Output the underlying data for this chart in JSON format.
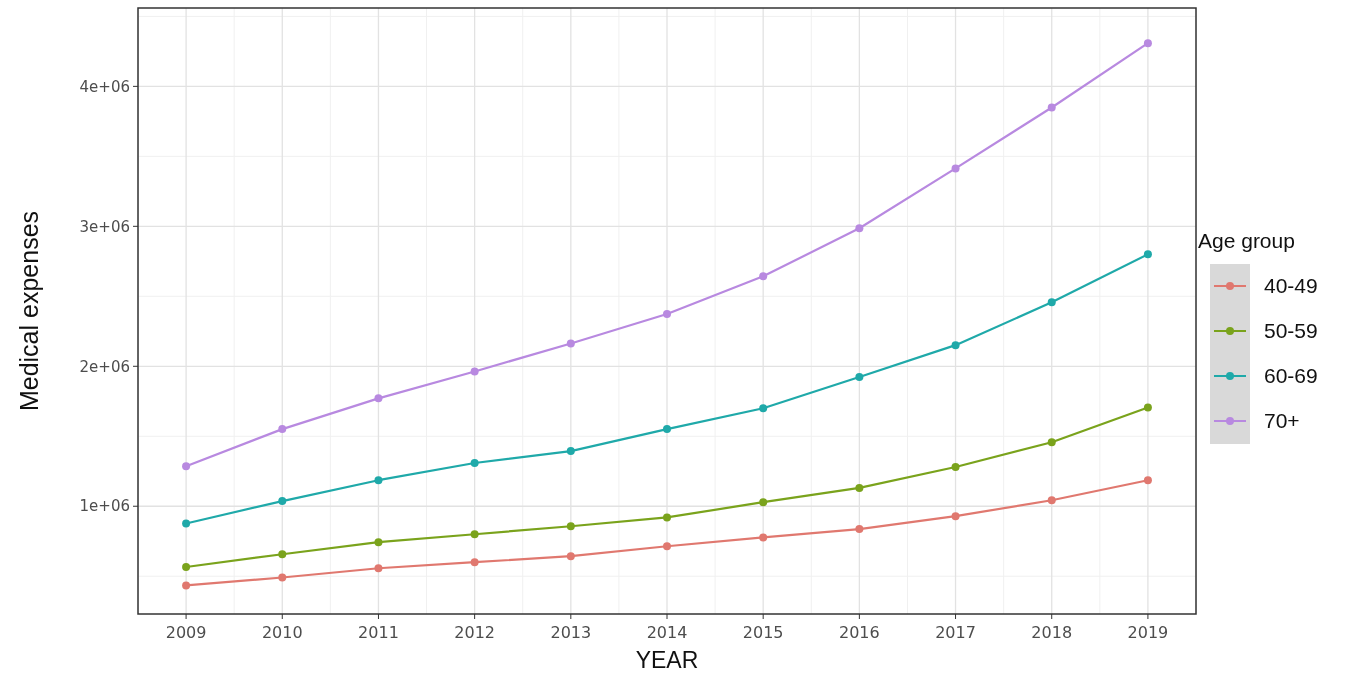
{
  "chart_data": {
    "type": "line",
    "xlabel": "YEAR",
    "ylabel": "Medical expenses",
    "legend_title": "Age group",
    "legend": "right",
    "grid": true,
    "marker": "circle",
    "line_style": "solid",
    "x": [
      2009,
      2010,
      2011,
      2012,
      2013,
      2014,
      2015,
      2016,
      2017,
      2018,
      2019
    ],
    "xlim": [
      2008.5,
      2019.5
    ],
    "xticks": [
      2009,
      2010,
      2011,
      2012,
      2013,
      2014,
      2015,
      2016,
      2017,
      2018,
      2019
    ],
    "ylim": [
      230000,
      4560000
    ],
    "yticks": [
      {
        "value": 1000000,
        "label": "1e+06"
      },
      {
        "value": 2000000,
        "label": "2e+06"
      },
      {
        "value": 3000000,
        "label": "3e+06"
      },
      {
        "value": 4000000,
        "label": "4e+06"
      }
    ],
    "series": [
      {
        "name": "40-49",
        "color": "#e0786f",
        "values": [
          434000,
          491000,
          557000,
          600000,
          643000,
          714000,
          777000,
          837000,
          929000,
          1043000,
          1186000
        ]
      },
      {
        "name": "50-59",
        "color": "#7aa31c",
        "values": [
          566000,
          657000,
          743000,
          800000,
          857000,
          920000,
          1029000,
          1131000,
          1280000,
          1457000,
          1706000
        ]
      },
      {
        "name": "60-69",
        "color": "#1fa9a9",
        "values": [
          877000,
          1037000,
          1186000,
          1309000,
          1394000,
          1551000,
          1700000,
          1923000,
          2151000,
          2457000,
          2800000
        ]
      },
      {
        "name": "70+",
        "color": "#b889e0",
        "values": [
          1286000,
          1551000,
          1771000,
          1963000,
          2163000,
          2374000,
          2643000,
          2986000,
          3414000,
          3849000,
          4309000
        ]
      }
    ]
  }
}
